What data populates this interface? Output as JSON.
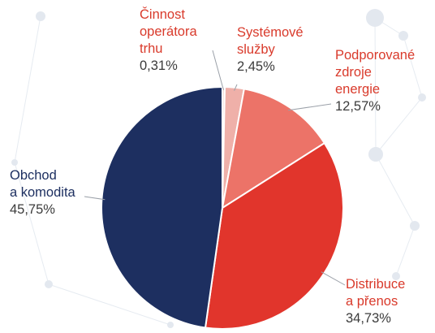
{
  "chart_data": {
    "type": "pie",
    "title": "",
    "start_angle_deg": 0,
    "direction": "clockwise",
    "slices": [
      {
        "label_lines": [
          "Činnost",
          "operátora",
          "trhu"
        ],
        "value_text": "0,31%",
        "value": 0.31,
        "color": "#f3d4d0",
        "label_color": "#d93a2b"
      },
      {
        "label_lines": [
          "Systémové",
          "služby"
        ],
        "value_text": "2,45%",
        "value": 2.45,
        "color": "#efb0a9",
        "label_color": "#d93a2b"
      },
      {
        "label_lines": [
          "Podporované",
          "zdroje",
          "energie"
        ],
        "value_text": "12,57%",
        "value": 12.57,
        "color": "#ec7368",
        "label_color": "#d93a2b"
      },
      {
        "label_lines": [
          "Distribuce",
          "a přenos"
        ],
        "value_text": "34,73%",
        "value": 34.73,
        "color": "#e1352c",
        "label_color": "#d93a2b"
      },
      {
        "label_lines": [
          "Obchod",
          "a komodita"
        ],
        "value_text": "45,75%",
        "value": 45.75,
        "color": "#1d2f60",
        "label_color": "#1d2f60"
      }
    ]
  }
}
